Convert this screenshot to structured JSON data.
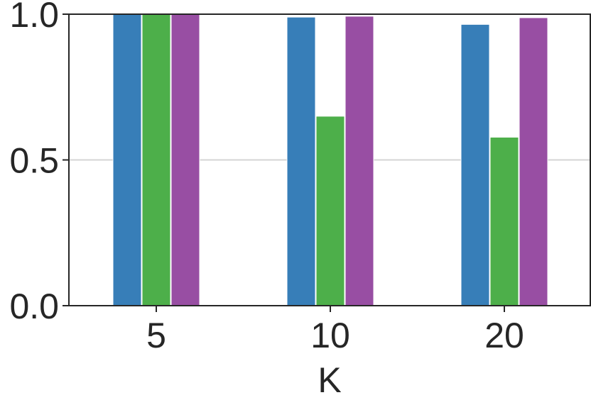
{
  "chart_data": {
    "type": "bar",
    "categories": [
      "5",
      "10",
      "20"
    ],
    "series": [
      {
        "color": "#377eb8",
        "values": [
          1.0,
          0.99,
          0.965
        ]
      },
      {
        "color": "#4daf4a",
        "values": [
          1.0,
          0.65,
          0.578
        ]
      },
      {
        "color": "#984ea3",
        "values": [
          1.0,
          0.993,
          0.988
        ]
      }
    ],
    "title": "",
    "xlabel": "K",
    "ylabel": "",
    "ylim": [
      0,
      1.0
    ],
    "yticks": [
      0.0,
      0.5,
      1.0
    ],
    "ytick_labels": [
      "0.0",
      "0.5",
      "1.0"
    ],
    "grid": "horizontal",
    "legend": "none"
  },
  "colors": {
    "axis": "#262626",
    "grid": "#d4d4d4",
    "background": "#ffffff"
  }
}
